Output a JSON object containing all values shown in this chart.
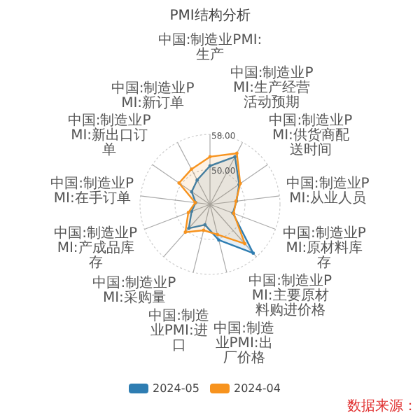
{
  "chart_data": {
    "type": "radar",
    "title": "PMI结构分析",
    "categories": [
      "中国:制造业PMI:生产",
      "中国:制造业PMI:生产经营活动预期",
      "中国:制造业PMI:供货商配送时间",
      "中国:制造业PMI:从业人员",
      "中国:制造业PMI:原材料库存",
      "中国:制造业PMI:主要原材料购进价格",
      "中国:制造业PMI:出厂价格",
      "中国:制造业PMI:进口",
      "中国:制造业PMI:采购量",
      "中国:制造业PMI:产成品库存",
      "中国:制造业PMI:在手订单",
      "中国:制造业PMI:新出口订单",
      "中国:制造业PMI:新订单"
    ],
    "series": [
      {
        "name": "2024-05",
        "color": "#2e7db2",
        "values": [
          50.8,
          54.3,
          50.1,
          48.1,
          47.6,
          56.9,
          50.4,
          46.8,
          49.3,
          46.5,
          45.3,
          47.1,
          48.3
        ]
      },
      {
        "name": "2024-04",
        "color": "#f7931e",
        "values": [
          52.9,
          55.2,
          50.4,
          48.0,
          47.8,
          54.0,
          49.1,
          48.1,
          50.5,
          47.3,
          45.4,
          50.6,
          51.1
        ]
      }
    ],
    "ylim": [
      42,
      58
    ],
    "yticks": [
      {
        "value": 50,
        "label": "50.00"
      },
      {
        "value": 58,
        "label": "58.00"
      }
    ],
    "grid": true,
    "legend": "bottom",
    "marker": "circle",
    "annotations": [
      "数据来源："
    ]
  }
}
